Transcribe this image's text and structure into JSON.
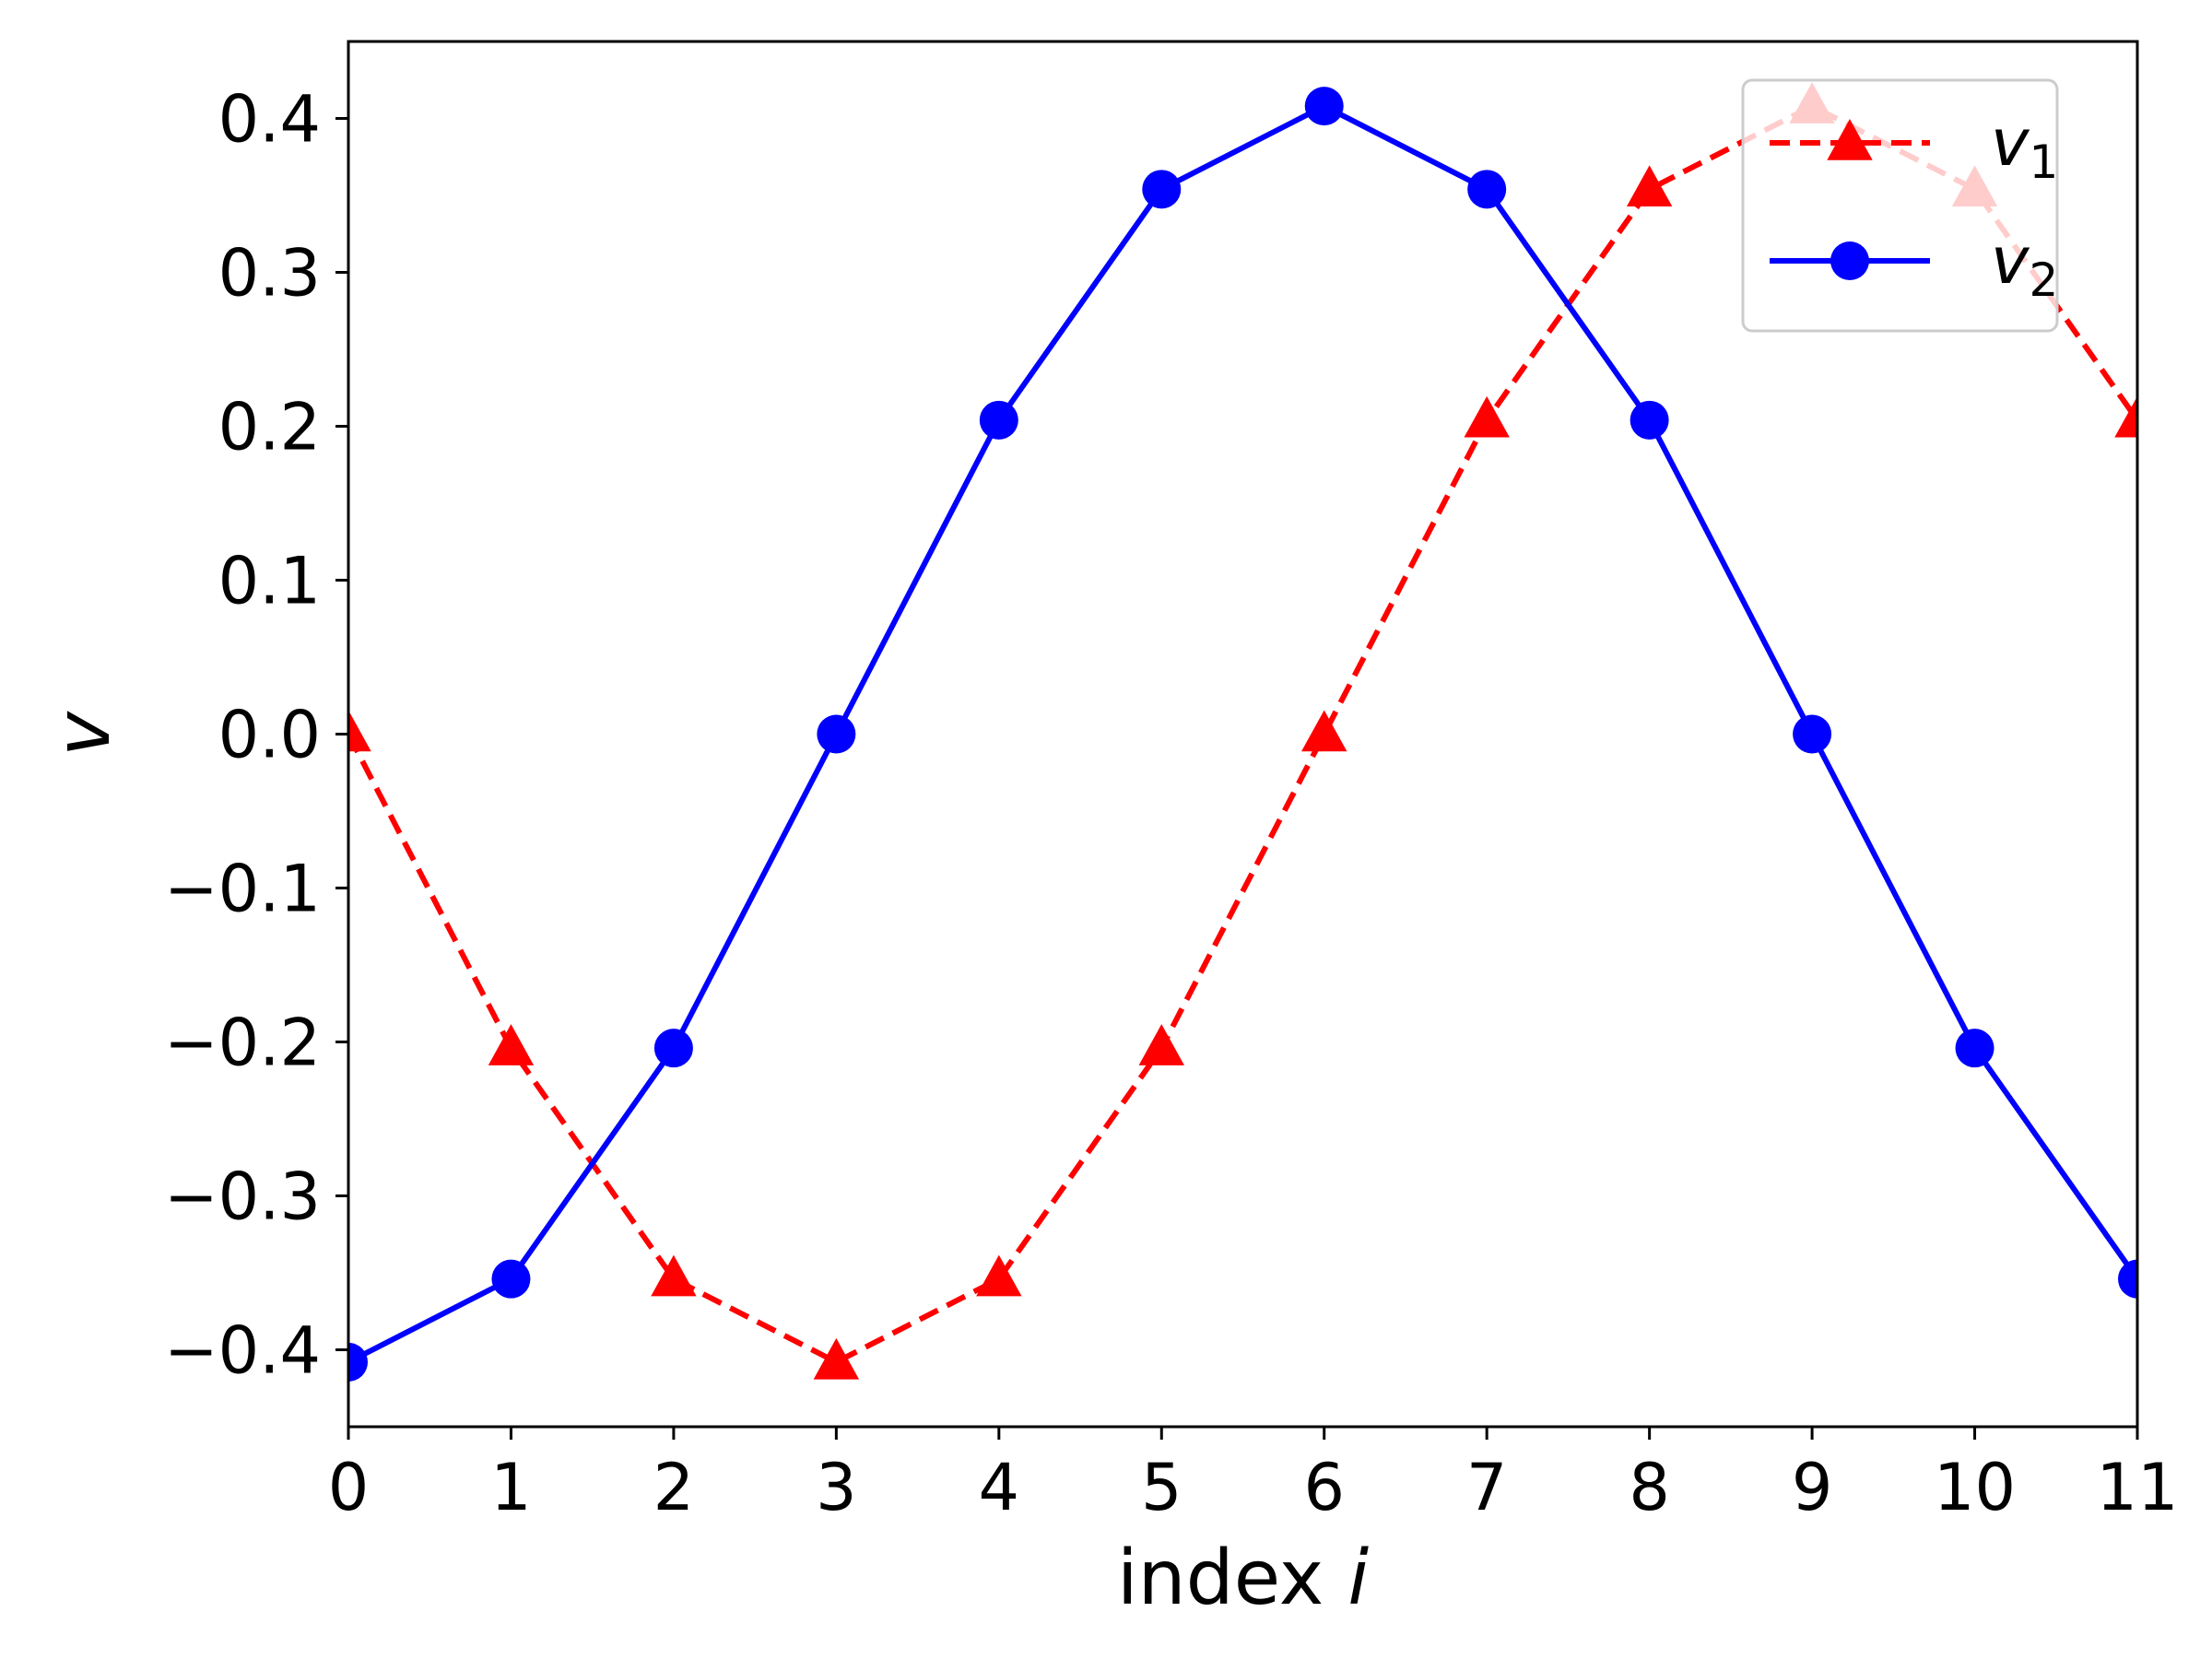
{
  "chart_data": {
    "type": "line",
    "xlabel": "index",
    "xlabel_var": "i",
    "ylabel": "v",
    "x": [
      0,
      1,
      2,
      3,
      4,
      5,
      6,
      7,
      8,
      9,
      10,
      11
    ],
    "xlim": [
      0,
      11
    ],
    "ylim": [
      -0.45,
      0.45
    ],
    "xticks": [
      "0",
      "1",
      "2",
      "3",
      "4",
      "5",
      "6",
      "7",
      "8",
      "9",
      "10",
      "11"
    ],
    "yticks": [
      {
        "value": 0.4,
        "label": "0.4"
      },
      {
        "value": 0.3,
        "label": "0.3"
      },
      {
        "value": 0.2,
        "label": "0.2"
      },
      {
        "value": 0.1,
        "label": "0.1"
      },
      {
        "value": 0.0,
        "label": "0.0"
      },
      {
        "value": -0.1,
        "label": "−0.1"
      },
      {
        "value": -0.2,
        "label": "−0.2"
      },
      {
        "value": -0.3,
        "label": "−0.3"
      },
      {
        "value": -0.4,
        "label": "−0.4"
      }
    ],
    "grid": false,
    "legend_position": "top-right",
    "series": [
      {
        "name": "v",
        "name_sub": "1",
        "color": "#ff0000",
        "linestyle": "dashed",
        "marker": "triangle",
        "values": [
          0.0,
          -0.204,
          -0.354,
          -0.408,
          -0.354,
          -0.204,
          0.0,
          0.204,
          0.354,
          0.408,
          0.354,
          0.204
        ]
      },
      {
        "name": "v",
        "name_sub": "2",
        "color": "#0000ff",
        "linestyle": "solid",
        "marker": "circle",
        "values": [
          -0.408,
          -0.354,
          -0.204,
          0.0,
          0.204,
          0.354,
          0.408,
          0.354,
          0.204,
          0.0,
          -0.204,
          -0.354
        ]
      }
    ]
  }
}
